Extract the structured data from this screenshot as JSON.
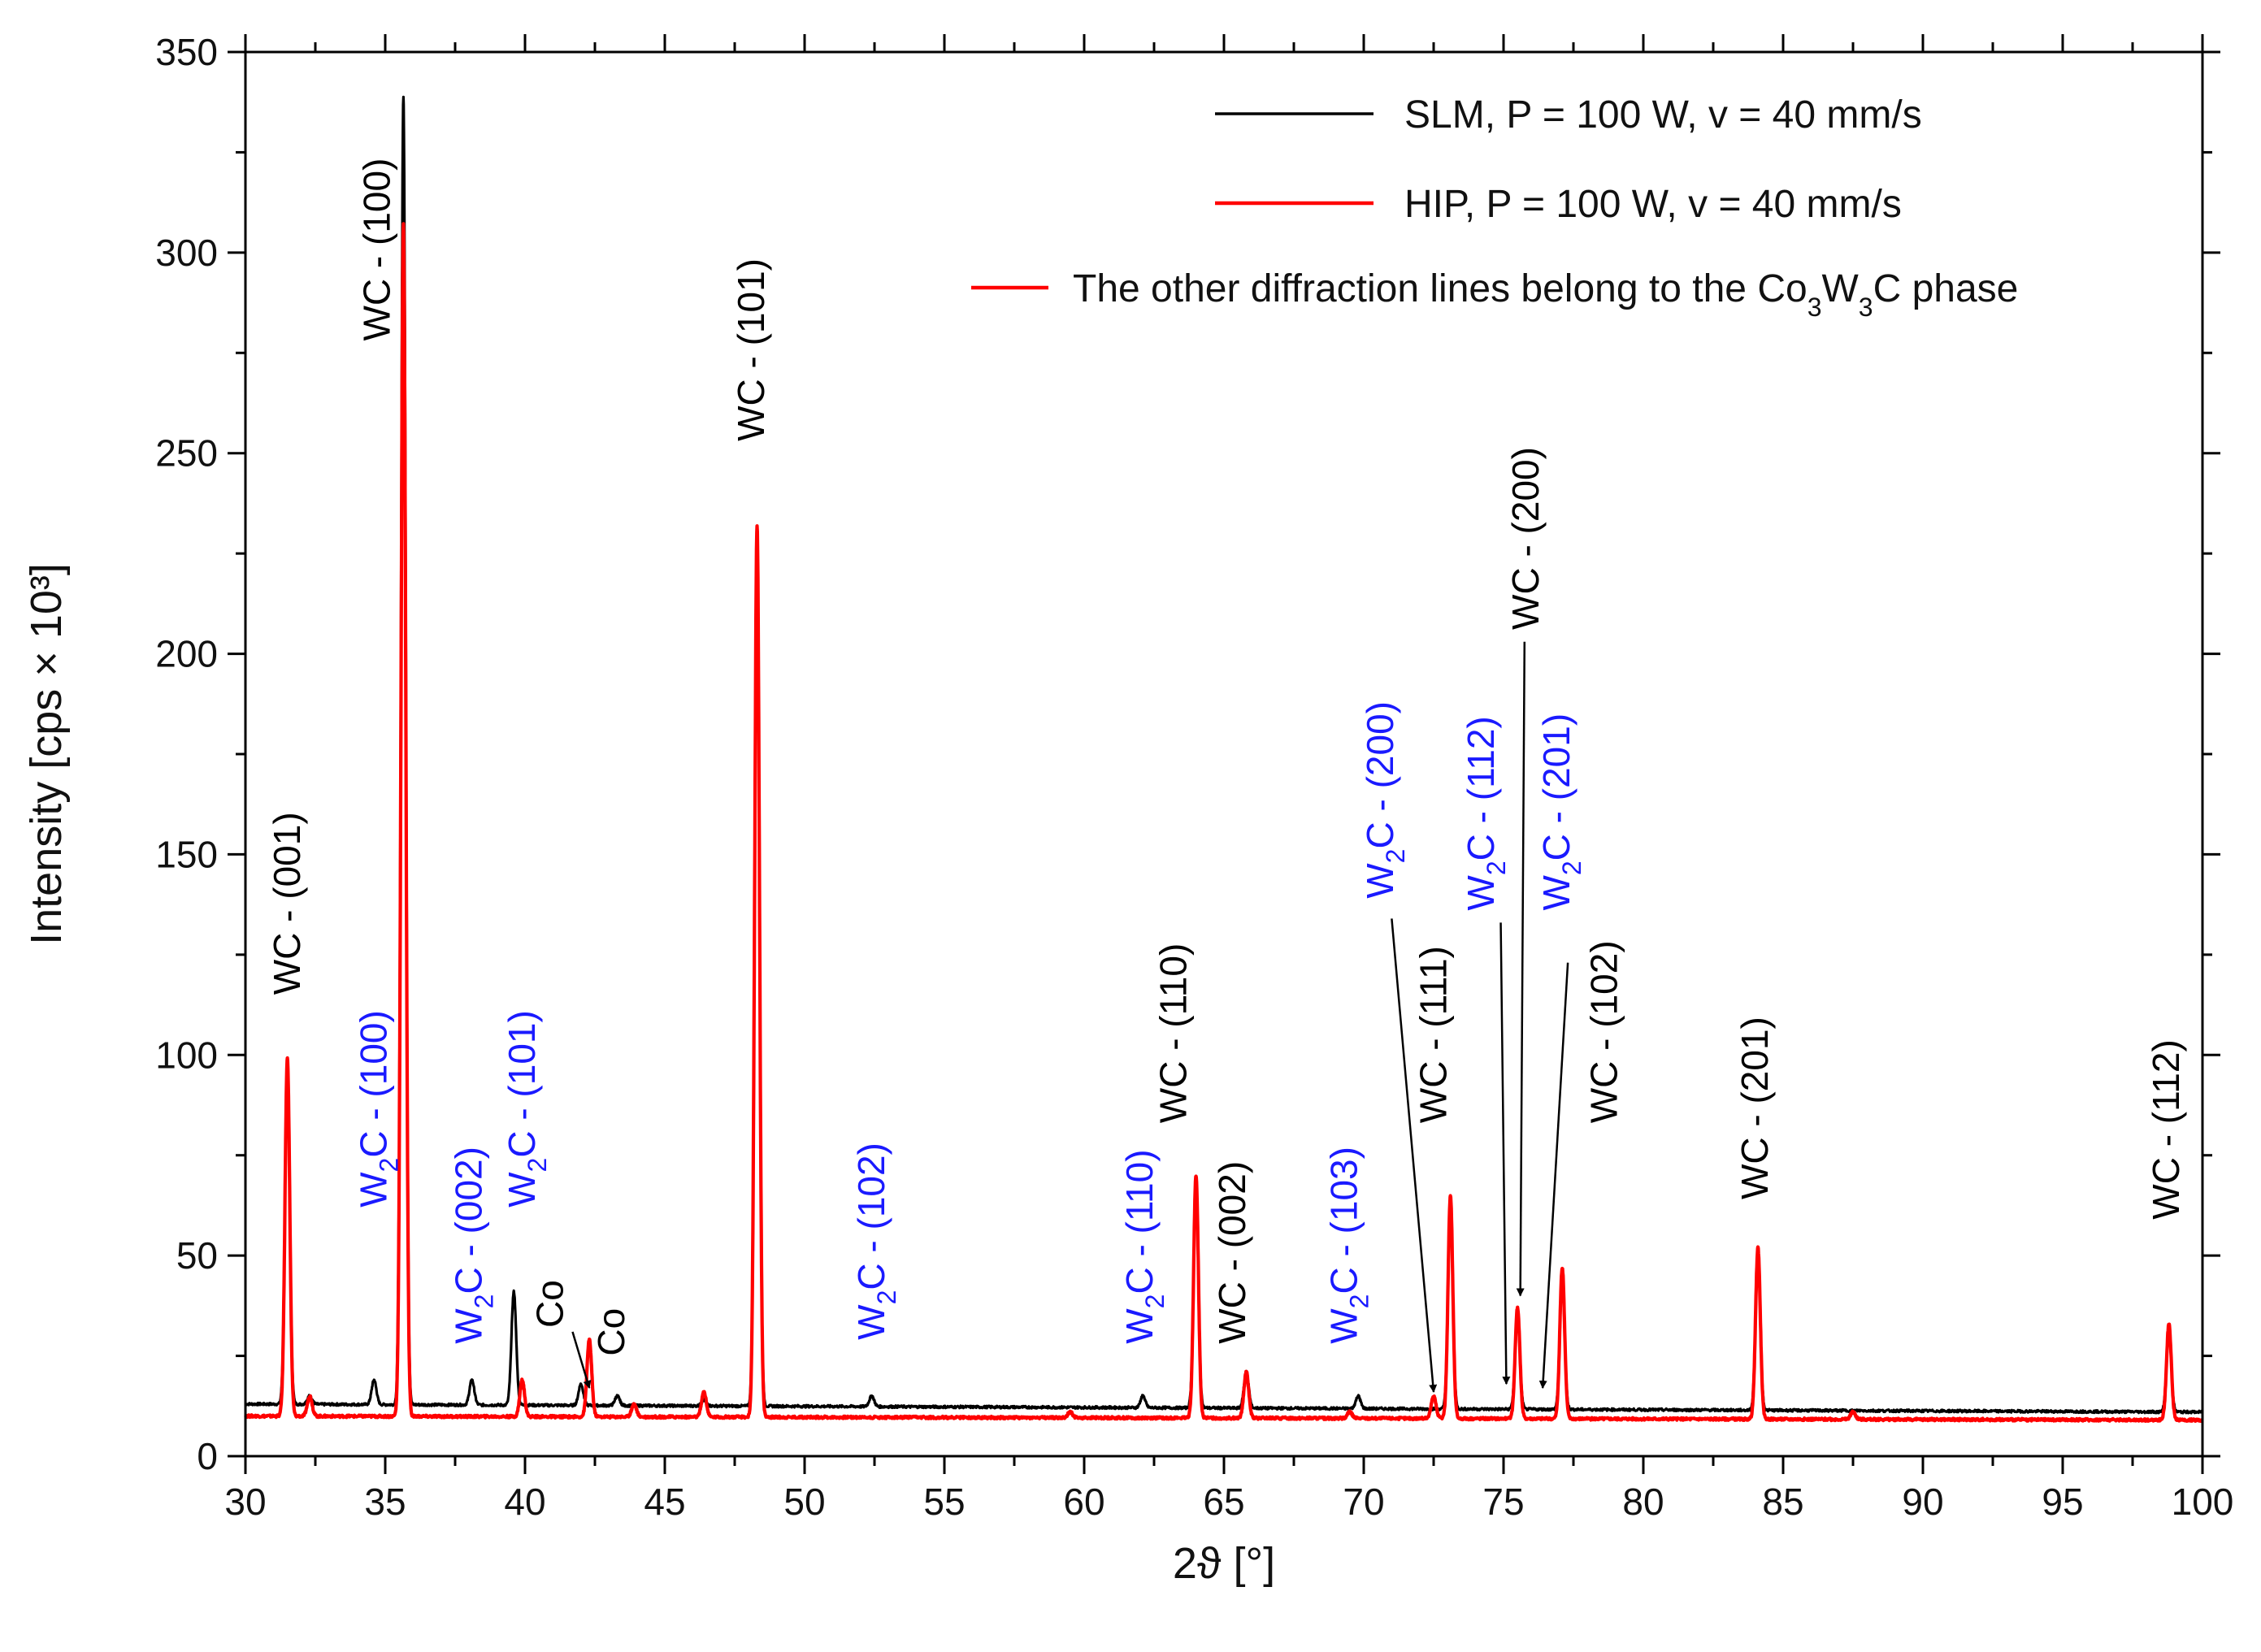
{
  "chart_data": {
    "type": "line",
    "title": "",
    "xlabel": "2ϑ [°]",
    "ylabel": "Intensity [cps × 10³]",
    "xlim": [
      30,
      100
    ],
    "ylim": [
      0,
      350
    ],
    "x_ticks": [
      30,
      35,
      40,
      45,
      50,
      55,
      60,
      65,
      70,
      75,
      80,
      85,
      90,
      95,
      100
    ],
    "y_ticks": [
      0,
      50,
      100,
      150,
      200,
      250,
      300,
      350
    ],
    "grid": false,
    "legend_position": "top-right",
    "colors": {
      "slm": "#000000",
      "hip": "#ff0000",
      "w2c_label": "#1a1aff",
      "wc_label": "#000000"
    },
    "series": [
      {
        "name": "SLM, P = 100 W, v = 40 mm/s",
        "color": "#000000",
        "baseline_start": 13,
        "baseline_end": 11,
        "peaks": [
          {
            "x": 31.5,
            "y": 98
          },
          {
            "x": 32.3,
            "y": 15
          },
          {
            "x": 34.6,
            "y": 19
          },
          {
            "x": 35.65,
            "y": 339
          },
          {
            "x": 38.1,
            "y": 19
          },
          {
            "x": 39.6,
            "y": 41
          },
          {
            "x": 42.0,
            "y": 18
          },
          {
            "x": 43.3,
            "y": 15
          },
          {
            "x": 46.4,
            "y": 14
          },
          {
            "x": 48.3,
            "y": 230
          },
          {
            "x": 52.4,
            "y": 15
          },
          {
            "x": 62.1,
            "y": 15
          },
          {
            "x": 64.0,
            "y": 68
          },
          {
            "x": 65.8,
            "y": 21
          },
          {
            "x": 69.8,
            "y": 15
          },
          {
            "x": 73.1,
            "y": 63
          },
          {
            "x": 75.5,
            "y": 35
          },
          {
            "x": 77.1,
            "y": 44
          },
          {
            "x": 84.1,
            "y": 50
          },
          {
            "x": 98.8,
            "y": 31
          }
        ]
      },
      {
        "name": "HIP,  P = 100 W, v = 40 mm/s",
        "color": "#ff0000",
        "baseline_start": 10,
        "baseline_end": 9,
        "peaks": [
          {
            "x": 31.5,
            "y": 99
          },
          {
            "x": 32.3,
            "y": 15
          },
          {
            "x": 35.65,
            "y": 307
          },
          {
            "x": 39.9,
            "y": 19
          },
          {
            "x": 42.3,
            "y": 29
          },
          {
            "x": 43.9,
            "y": 13
          },
          {
            "x": 46.4,
            "y": 16
          },
          {
            "x": 48.3,
            "y": 232
          },
          {
            "x": 59.5,
            "y": 11
          },
          {
            "x": 64.0,
            "y": 70
          },
          {
            "x": 65.8,
            "y": 21
          },
          {
            "x": 69.5,
            "y": 11
          },
          {
            "x": 72.5,
            "y": 15
          },
          {
            "x": 73.1,
            "y": 65
          },
          {
            "x": 75.5,
            "y": 37
          },
          {
            "x": 77.1,
            "y": 47
          },
          {
            "x": 84.1,
            "y": 52
          },
          {
            "x": 87.5,
            "y": 11
          },
          {
            "x": 98.8,
            "y": 33
          }
        ]
      }
    ],
    "legend": [
      {
        "label": "SLM, P = 100 W, v = 40 mm/s",
        "color": "#000000"
      },
      {
        "label": "HIP,  P = 100 W, v = 40 mm/s",
        "color": "#ff0000"
      },
      {
        "label": "The other diffraction lines belong to the Co₃W₃C phase",
        "color": "#ff0000"
      }
    ],
    "annotations": [
      {
        "text": "WC - (001)",
        "x": 31.6,
        "y": 115,
        "color": "wc"
      },
      {
        "text": "W₂C - (100)",
        "x": 34.7,
        "y": 62,
        "color": "w2c"
      },
      {
        "text": "WC - (100)",
        "x": 34.8,
        "y": 278,
        "color": "wc"
      },
      {
        "text": "W₂C - (002)",
        "x": 38.1,
        "y": 28,
        "color": "w2c"
      },
      {
        "text": "W₂C - (101)",
        "x": 40.0,
        "y": 62,
        "color": "w2c"
      },
      {
        "text": "Co",
        "x": 41.0,
        "y": 32,
        "color": "wc"
      },
      {
        "text": "Co",
        "x": 43.2,
        "y": 25,
        "color": "wc"
      },
      {
        "text": "WC - (101)",
        "x": 48.2,
        "y": 253,
        "color": "wc"
      },
      {
        "text": "W₂C - (102)",
        "x": 52.5,
        "y": 29,
        "color": "w2c"
      },
      {
        "text": "W₂C - (110)",
        "x": 62.1,
        "y": 28,
        "color": "w2c"
      },
      {
        "text": "WC - (110)",
        "x": 63.3,
        "y": 83,
        "color": "wc"
      },
      {
        "text": "WC - (002)",
        "x": 65.4,
        "y": 28,
        "color": "wc"
      },
      {
        "text": "W₂C - (103)",
        "x": 69.4,
        "y": 28,
        "color": "w2c"
      },
      {
        "text": "W₂C - (200)",
        "x": 70.7,
        "y": 139,
        "color": "w2c"
      },
      {
        "text": "WC - (111)",
        "x": 72.6,
        "y": 83,
        "color": "wc"
      },
      {
        "text": "W₂C - (112)",
        "x": 74.3,
        "y": 136,
        "color": "w2c"
      },
      {
        "text": "WC - (200)",
        "x": 75.9,
        "y": 206,
        "color": "wc"
      },
      {
        "text": "W₂C - (201)",
        "x": 77.0,
        "y": 136,
        "color": "w2c"
      },
      {
        "text": "WC - (102)",
        "x": 78.7,
        "y": 83,
        "color": "wc"
      },
      {
        "text": "WC - (201)",
        "x": 84.1,
        "y": 64,
        "color": "wc"
      },
      {
        "text": "WC - (112)",
        "x": 98.8,
        "y": 59,
        "color": "wc"
      }
    ],
    "arrows": [
      {
        "from": [
          41.7,
          31
        ],
        "to": [
          42.3,
          17
        ]
      },
      {
        "from": [
          71.0,
          134
        ],
        "to": [
          72.5,
          16
        ]
      },
      {
        "from": [
          74.9,
          133
        ],
        "to": [
          75.1,
          18
        ]
      },
      {
        "from": [
          75.75,
          203
        ],
        "to": [
          75.6,
          40
        ]
      },
      {
        "from": [
          77.3,
          123
        ],
        "to": [
          76.4,
          17
        ]
      }
    ]
  }
}
